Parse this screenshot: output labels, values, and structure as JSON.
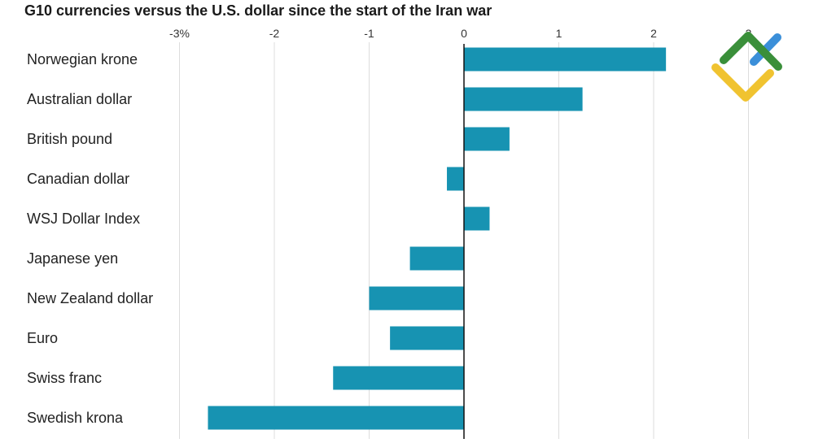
{
  "chart_data": {
    "type": "bar",
    "orientation": "horizontal",
    "title": "G10 currencies versus the U.S. dollar since the start of the Iran war",
    "xlabel": "",
    "ylabel": "",
    "xlim": [
      -3,
      3
    ],
    "ticks": [
      {
        "value": -3,
        "label": "-3%"
      },
      {
        "value": -2,
        "label": "-2"
      },
      {
        "value": -1,
        "label": "-1"
      },
      {
        "value": 0,
        "label": "0"
      },
      {
        "value": 1,
        "label": "1"
      },
      {
        "value": 2,
        "label": "2"
      },
      {
        "value": 3,
        "label": "3"
      }
    ],
    "grid": true,
    "bar_color": "#1793b2",
    "categories": [
      "Norwegian krone",
      "Australian dollar",
      "British pound",
      "Canadian dollar",
      "WSJ Dollar Index",
      "Japanese yen",
      "New Zealand dollar",
      "Euro",
      "Swiss franc",
      "Swedish krona"
    ],
    "values": [
      2.13,
      1.25,
      0.48,
      -0.18,
      0.27,
      -0.57,
      -1.0,
      -0.78,
      -1.38,
      -2.7
    ]
  },
  "logo": {
    "colors": {
      "green": "#3a8f3a",
      "blue": "#3b8fd9",
      "yellow": "#f0c330"
    }
  }
}
